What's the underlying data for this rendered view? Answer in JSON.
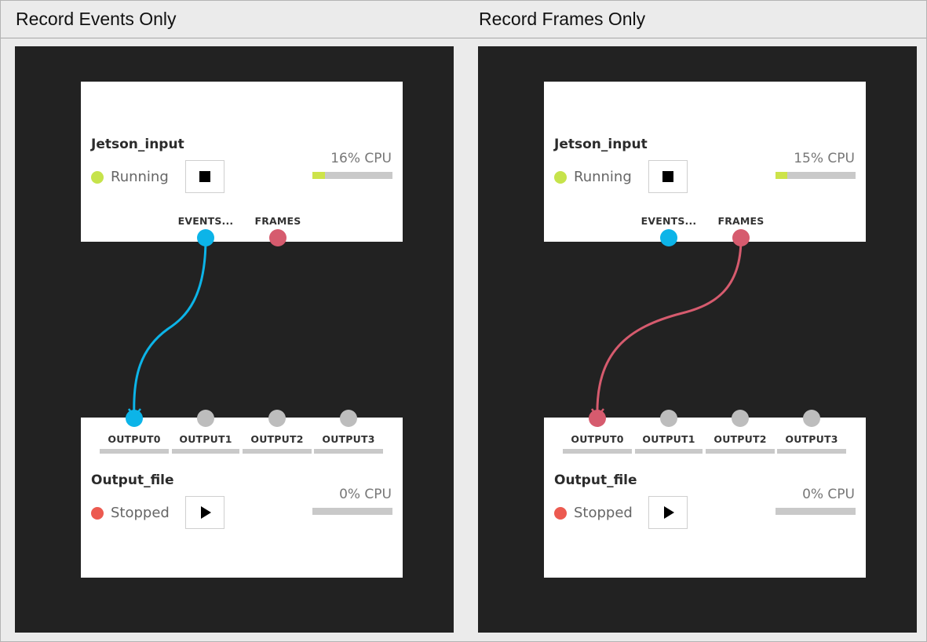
{
  "headers": {
    "left": "Record Events Only",
    "right": "Record Frames Only"
  },
  "colors": {
    "events_port": "#0cb4e8",
    "frames_port": "#d65b6e",
    "inactive_port": "#bdbdbd",
    "running": "#c6e34b",
    "stopped": "#ec5a50",
    "canvas": "#222222"
  },
  "panels": [
    {
      "source": {
        "title": "Jetson_input",
        "status": "Running",
        "control_icon": "stop-icon",
        "cpu": {
          "label": "16% CPU",
          "percent": 16
        },
        "ports": [
          {
            "label": "EVENTS...",
            "color": "events_port"
          },
          {
            "label": "FRAMES",
            "color": "frames_port"
          }
        ]
      },
      "sink": {
        "title": "Output_file",
        "status": "Stopped",
        "control_icon": "play-icon",
        "cpu": {
          "label": "0% CPU",
          "percent": 0
        },
        "ports": [
          {
            "label": "OUTPUT0",
            "color": "events_port"
          },
          {
            "label": "OUTPUT1",
            "color": "inactive_port"
          },
          {
            "label": "OUTPUT2",
            "color": "inactive_port"
          },
          {
            "label": "OUTPUT3",
            "color": "inactive_port"
          }
        ]
      },
      "connection": {
        "from": "EVENTS...",
        "to": "OUTPUT0",
        "color": "events_port"
      }
    },
    {
      "source": {
        "title": "Jetson_input",
        "status": "Running",
        "control_icon": "stop-icon",
        "cpu": {
          "label": "15% CPU",
          "percent": 15
        },
        "ports": [
          {
            "label": "EVENTS...",
            "color": "events_port"
          },
          {
            "label": "FRAMES",
            "color": "frames_port"
          }
        ]
      },
      "sink": {
        "title": "Output_file",
        "status": "Stopped",
        "control_icon": "play-icon",
        "cpu": {
          "label": "0% CPU",
          "percent": 0
        },
        "ports": [
          {
            "label": "OUTPUT0",
            "color": "frames_port"
          },
          {
            "label": "OUTPUT1",
            "color": "inactive_port"
          },
          {
            "label": "OUTPUT2",
            "color": "inactive_port"
          },
          {
            "label": "OUTPUT3",
            "color": "inactive_port"
          }
        ]
      },
      "connection": {
        "from": "FRAMES",
        "to": "OUTPUT0",
        "color": "frames_port"
      }
    }
  ]
}
